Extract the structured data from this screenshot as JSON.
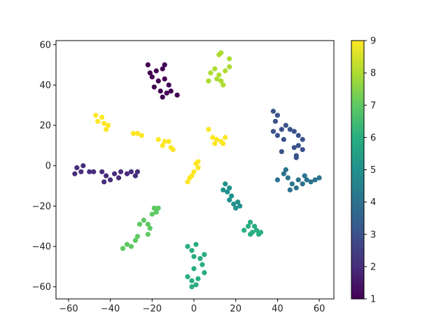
{
  "chart_data": {
    "type": "scatter",
    "title": "",
    "xlabel": "",
    "ylabel": "",
    "xlim": [
      -66,
      67
    ],
    "ylim": [
      -66,
      62
    ],
    "x_ticks": [
      -60,
      -40,
      -20,
      0,
      20,
      40,
      60
    ],
    "y_ticks": [
      -60,
      -40,
      -20,
      0,
      20,
      40,
      60
    ],
    "x_tick_labels": [
      "−60",
      "−40",
      "−20",
      "0",
      "20",
      "40",
      "60"
    ],
    "y_tick_labels": [
      "−60",
      "−40",
      "−20",
      "0",
      "20",
      "40",
      "60"
    ],
    "grid": false,
    "colormap": "viridis",
    "colorbar": {
      "range": [
        1,
        9
      ],
      "ticks": [
        1,
        2,
        3,
        4,
        5,
        6,
        7,
        8,
        9
      ],
      "tick_labels": [
        "1",
        "2",
        "3",
        "4",
        "5",
        "6",
        "7",
        "8",
        "9"
      ]
    },
    "points": [
      {
        "x": -22,
        "y": 50,
        "c": 1
      },
      {
        "x": -18,
        "y": 47,
        "c": 1
      },
      {
        "x": -15,
        "y": 48,
        "c": 1
      },
      {
        "x": -20,
        "y": 44,
        "c": 1
      },
      {
        "x": -17,
        "y": 42,
        "c": 1
      },
      {
        "x": -14,
        "y": 43,
        "c": 1
      },
      {
        "x": -12,
        "y": 40,
        "c": 1
      },
      {
        "x": -19,
        "y": 39,
        "c": 1
      },
      {
        "x": -16,
        "y": 37,
        "c": 1
      },
      {
        "x": -13,
        "y": 36,
        "c": 1
      },
      {
        "x": -11,
        "y": 37,
        "c": 1
      },
      {
        "x": -15,
        "y": 34,
        "c": 1
      },
      {
        "x": -8,
        "y": 35,
        "c": 1
      },
      {
        "x": -21,
        "y": 46,
        "c": 1
      },
      {
        "x": -14,
        "y": 50,
        "c": 1
      },
      {
        "x": -56,
        "y": -1,
        "c": 2
      },
      {
        "x": -54,
        "y": -3,
        "c": 2
      },
      {
        "x": -57,
        "y": -4,
        "c": 2
      },
      {
        "x": -53,
        "y": 0,
        "c": 2
      },
      {
        "x": -50,
        "y": -3,
        "c": 2
      },
      {
        "x": -48,
        "y": -3,
        "c": 2
      },
      {
        "x": -44,
        "y": -3,
        "c": 2
      },
      {
        "x": -42,
        "y": -5,
        "c": 2
      },
      {
        "x": -40,
        "y": -7,
        "c": 2
      },
      {
        "x": -38,
        "y": -4,
        "c": 2
      },
      {
        "x": -35,
        "y": -3,
        "c": 2
      },
      {
        "x": -32,
        "y": -4,
        "c": 2
      },
      {
        "x": -30,
        "y": -3,
        "c": 2
      },
      {
        "x": -28,
        "y": -5,
        "c": 2
      },
      {
        "x": -27,
        "y": -3,
        "c": 2
      },
      {
        "x": -43,
        "y": -8,
        "c": 2
      },
      {
        "x": -36,
        "y": -6,
        "c": 2
      },
      {
        "x": 38,
        "y": 27,
        "c": 3
      },
      {
        "x": 40,
        "y": 25,
        "c": 3
      },
      {
        "x": 39,
        "y": 22,
        "c": 3
      },
      {
        "x": 42,
        "y": 18,
        "c": 3
      },
      {
        "x": 44,
        "y": 20,
        "c": 3
      },
      {
        "x": 46,
        "y": 18,
        "c": 3
      },
      {
        "x": 38,
        "y": 17,
        "c": 3
      },
      {
        "x": 40,
        "y": 15,
        "c": 3
      },
      {
        "x": 43,
        "y": 13,
        "c": 3
      },
      {
        "x": 48,
        "y": 17,
        "c": 3
      },
      {
        "x": 50,
        "y": 15,
        "c": 3
      },
      {
        "x": 52,
        "y": 13,
        "c": 3
      },
      {
        "x": 50,
        "y": 10,
        "c": 3
      },
      {
        "x": 52,
        "y": 8,
        "c": 3
      },
      {
        "x": 48,
        "y": 9,
        "c": 3
      },
      {
        "x": 42,
        "y": 7,
        "c": 3
      },
      {
        "x": 49,
        "y": 4,
        "c": 3
      },
      {
        "x": 49,
        "y": 5,
        "c": 3
      },
      {
        "x": 40,
        "y": -7,
        "c": 4
      },
      {
        "x": 43,
        "y": -4,
        "c": 4
      },
      {
        "x": 44,
        "y": -2,
        "c": 4
      },
      {
        "x": 45,
        "y": -6,
        "c": 4
      },
      {
        "x": 47,
        "y": -9,
        "c": 4
      },
      {
        "x": 49,
        "y": -11,
        "c": 4
      },
      {
        "x": 50,
        "y": -7,
        "c": 4
      },
      {
        "x": 52,
        "y": -9,
        "c": 4
      },
      {
        "x": 54,
        "y": -7,
        "c": 4
      },
      {
        "x": 56,
        "y": -8,
        "c": 4
      },
      {
        "x": 58,
        "y": -7,
        "c": 4
      },
      {
        "x": 60,
        "y": -6,
        "c": 4
      },
      {
        "x": 46,
        "y": -12,
        "c": 4
      },
      {
        "x": 53,
        "y": -5,
        "c": 4
      },
      {
        "x": 14,
        "y": -12,
        "c": 5
      },
      {
        "x": 15,
        "y": -9,
        "c": 5
      },
      {
        "x": 16,
        "y": -13,
        "c": 5
      },
      {
        "x": 17,
        "y": -11,
        "c": 5
      },
      {
        "x": 18,
        "y": -15,
        "c": 5
      },
      {
        "x": 17,
        "y": -17,
        "c": 5
      },
      {
        "x": 19,
        "y": -19,
        "c": 5
      },
      {
        "x": 20,
        "y": -21,
        "c": 5
      },
      {
        "x": 21,
        "y": -18,
        "c": 5
      },
      {
        "x": 22,
        "y": -20,
        "c": 5
      },
      {
        "x": 24,
        "y": -32,
        "c": 6
      },
      {
        "x": 26,
        "y": -30,
        "c": 6
      },
      {
        "x": 27,
        "y": -28,
        "c": 6
      },
      {
        "x": 28,
        "y": -33,
        "c": 6
      },
      {
        "x": 29,
        "y": -30,
        "c": 6
      },
      {
        "x": 30,
        "y": -32,
        "c": 6
      },
      {
        "x": 31,
        "y": -34,
        "c": 6
      },
      {
        "x": 32,
        "y": -33,
        "c": 6
      },
      {
        "x": 27,
        "y": -34,
        "c": 6
      },
      {
        "x": -3,
        "y": -40,
        "c": 6
      },
      {
        "x": -1,
        "y": -42,
        "c": 6
      },
      {
        "x": 1,
        "y": -39,
        "c": 6
      },
      {
        "x": 0,
        "y": -45,
        "c": 6
      },
      {
        "x": 3,
        "y": -46,
        "c": 6
      },
      {
        "x": 5,
        "y": -44,
        "c": 6
      },
      {
        "x": 4,
        "y": -49,
        "c": 6
      },
      {
        "x": 5,
        "y": -53,
        "c": 6
      },
      {
        "x": 0,
        "y": -51,
        "c": 6
      },
      {
        "x": -3,
        "y": -55,
        "c": 6
      },
      {
        "x": -1,
        "y": -57,
        "c": 6
      },
      {
        "x": 1,
        "y": -59,
        "c": 6
      },
      {
        "x": -1,
        "y": -60,
        "c": 6
      },
      {
        "x": 2,
        "y": -56,
        "c": 6
      },
      {
        "x": -32,
        "y": -39,
        "c": 7
      },
      {
        "x": -30,
        "y": -40,
        "c": 7
      },
      {
        "x": -28,
        "y": -37,
        "c": 7
      },
      {
        "x": -27,
        "y": -35,
        "c": 7
      },
      {
        "x": -34,
        "y": -41,
        "c": 7
      },
      {
        "x": -26,
        "y": -29,
        "c": 7
      },
      {
        "x": -24,
        "y": -27,
        "c": 7
      },
      {
        "x": -22,
        "y": -29,
        "c": 7
      },
      {
        "x": -21,
        "y": -31,
        "c": 7
      },
      {
        "x": -22,
        "y": -34,
        "c": 7
      },
      {
        "x": -20,
        "y": -24,
        "c": 7
      },
      {
        "x": -19,
        "y": -21,
        "c": 7
      },
      {
        "x": -18,
        "y": -23,
        "c": 7
      },
      {
        "x": -17,
        "y": -21,
        "c": 7
      },
      {
        "x": 8,
        "y": 46,
        "c": 8
      },
      {
        "x": 10,
        "y": 48,
        "c": 8
      },
      {
        "x": 12,
        "y": 45,
        "c": 8
      },
      {
        "x": 13,
        "y": 42,
        "c": 8
      },
      {
        "x": 11,
        "y": 43,
        "c": 8
      },
      {
        "x": 14,
        "y": 40,
        "c": 8
      },
      {
        "x": 15,
        "y": 47,
        "c": 8
      },
      {
        "x": 12,
        "y": 55,
        "c": 8
      },
      {
        "x": 13,
        "y": 56,
        "c": 8
      },
      {
        "x": 17,
        "y": 53,
        "c": 8
      },
      {
        "x": 17,
        "y": 49,
        "c": 8
      },
      {
        "x": 7,
        "y": 42,
        "c": 8
      },
      {
        "x": -47,
        "y": 25,
        "c": 9
      },
      {
        "x": -44,
        "y": 24,
        "c": 9
      },
      {
        "x": -46,
        "y": 22,
        "c": 9
      },
      {
        "x": -43,
        "y": 21,
        "c": 9
      },
      {
        "x": -41,
        "y": 20,
        "c": 9
      },
      {
        "x": -42,
        "y": 18,
        "c": 9
      },
      {
        "x": -29,
        "y": 16,
        "c": 9
      },
      {
        "x": -27,
        "y": 16,
        "c": 9
      },
      {
        "x": -25,
        "y": 15,
        "c": 9
      },
      {
        "x": -17,
        "y": 13,
        "c": 9
      },
      {
        "x": -14,
        "y": 12,
        "c": 9
      },
      {
        "x": -12,
        "y": 12,
        "c": 9
      },
      {
        "x": -15,
        "y": 10,
        "c": 9
      },
      {
        "x": -11,
        "y": 9,
        "c": 9
      },
      {
        "x": -10,
        "y": 8,
        "c": 9
      },
      {
        "x": 7,
        "y": 18,
        "c": 9
      },
      {
        "x": 9,
        "y": 14,
        "c": 9
      },
      {
        "x": 11,
        "y": 13,
        "c": 9
      },
      {
        "x": 13,
        "y": 12,
        "c": 9
      },
      {
        "x": 15,
        "y": 14,
        "c": 9
      },
      {
        "x": 14,
        "y": 11,
        "c": 9
      },
      {
        "x": 10,
        "y": 11,
        "c": 9
      },
      {
        "x": 1,
        "y": 1,
        "c": 9
      },
      {
        "x": 2,
        "y": -1,
        "c": 9
      },
      {
        "x": 0,
        "y": -3,
        "c": 9
      },
      {
        "x": -1,
        "y": -5,
        "c": 9
      },
      {
        "x": -3,
        "y": -8,
        "c": 9
      },
      {
        "x": -2,
        "y": -6,
        "c": 9
      },
      {
        "x": 2,
        "y": 2,
        "c": 9
      }
    ]
  }
}
